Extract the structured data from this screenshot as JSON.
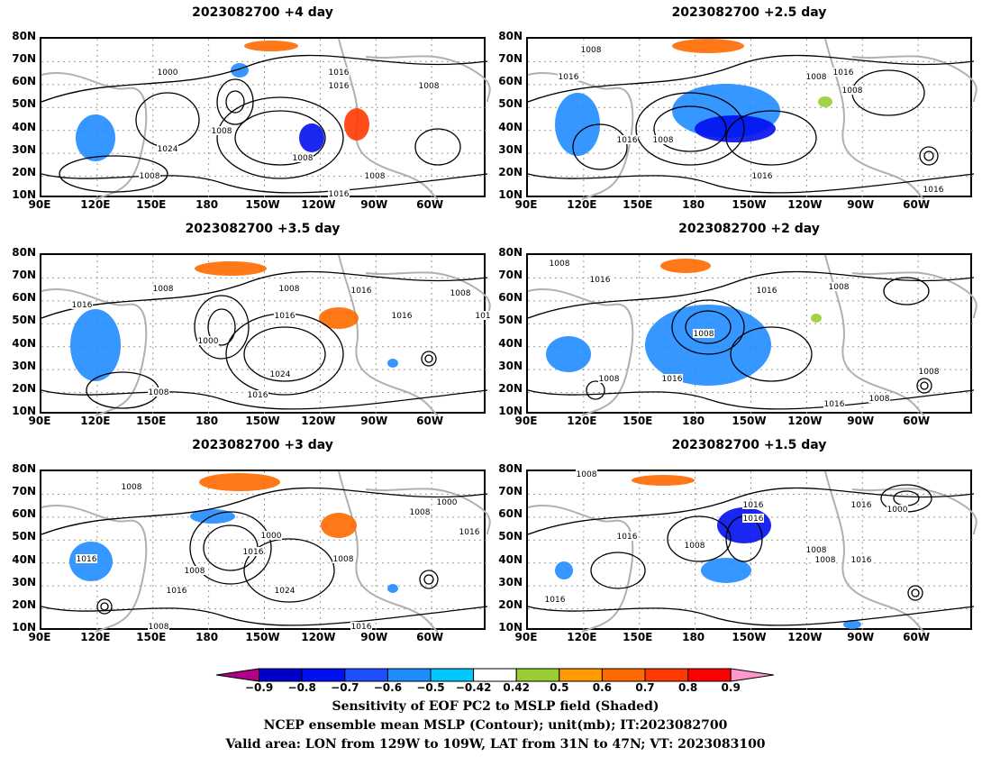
{
  "panels": [
    {
      "title": "2023082700  +4 day",
      "contours": [
        "1000",
        "1016",
        "1008",
        "1016",
        "1008",
        "1016",
        "1024",
        "1008",
        "1008",
        "1008"
      ]
    },
    {
      "title": "2023082700  +2.5 day",
      "contours": [
        "1008",
        "1016",
        "1008",
        "1016",
        "1008",
        "1016",
        "1008",
        "1016",
        "1016"
      ]
    },
    {
      "title": "2023082700  +3.5 day",
      "contours": [
        "1008",
        "1016",
        "1008",
        "1016",
        "1016",
        "1008",
        "1000",
        "1024",
        "1016",
        "1008",
        "1016",
        "101"
      ]
    },
    {
      "title": "2023082700  +2 day",
      "contours": [
        "1008",
        "1016",
        "1016",
        "1008",
        "1008",
        "1016",
        "1008",
        "1016",
        "1008",
        "1008"
      ]
    },
    {
      "title": "2023082700  +3 day",
      "contours": [
        "1008",
        "1016",
        "1008",
        "1000",
        "1016",
        "1016",
        "1024",
        "1008",
        "1016",
        "1000",
        "1008",
        "1016",
        "1008"
      ]
    },
    {
      "title": "2023082700  +1.5 day",
      "contours": [
        "1008",
        "1016",
        "1008",
        "1016",
        "1008",
        "1016",
        "1016",
        "1008",
        "1000",
        "1016",
        "1016"
      ]
    }
  ],
  "lat_labels": [
    "80N",
    "70N",
    "60N",
    "50N",
    "40N",
    "30N",
    "20N",
    "10N"
  ],
  "lon_labels": [
    "90E",
    "120E",
    "150E",
    "180",
    "150W",
    "120W",
    "90W",
    "60W"
  ],
  "colorbar": {
    "ticks": [
      "-0.9",
      "-0.8",
      "-0.7",
      "-0.6",
      "-0.5",
      "-0.42",
      "0.42",
      "0.5",
      "0.6",
      "0.7",
      "0.8",
      "0.9"
    ],
    "colors": [
      "#b0008a",
      "#0000c8",
      "#0010f0",
      "#1f4fff",
      "#1f8cff",
      "#00c8ff",
      "#ffffff",
      "#9acd32",
      "#ff9a00",
      "#ff6a00",
      "#ff3a00",
      "#ff0000",
      "#ff99cc"
    ]
  },
  "caption": {
    "line1": "Sensitivity of EOF PC2 to MSLP field (Shaded)",
    "line2": "NCEP ensemble mean MSLP (Contour); unit(mb); IT:2023082700",
    "line3": "Valid area: LON from 129W to 109W, LAT from 31N to 47N; VT: 2023083100"
  }
}
